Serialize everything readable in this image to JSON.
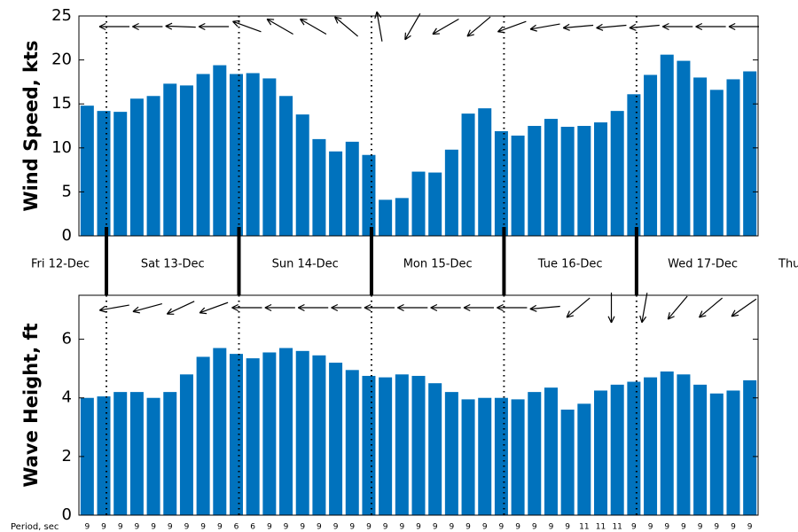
{
  "chart_data": [
    {
      "type": "bar",
      "ylabel": "Wind Speed, kts",
      "color": "#0072bd",
      "ylim": [
        0,
        25
      ],
      "yticks": [
        0,
        5,
        10,
        15,
        20,
        25
      ],
      "values": [
        14.8,
        14.2,
        14.1,
        15.6,
        15.9,
        17.3,
        17.1,
        18.4,
        19.4,
        18.4,
        18.5,
        17.9,
        15.9,
        13.8,
        11.0,
        9.6,
        10.7,
        9.2,
        4.1,
        4.3,
        7.3,
        7.2,
        9.8,
        13.9,
        14.5,
        11.9,
        11.4,
        12.5,
        13.3,
        12.4,
        12.5,
        12.9,
        14.2,
        16.1,
        18.3,
        20.6,
        19.9,
        18.0,
        16.6,
        17.8,
        18.7
      ],
      "arrow_directions": [
        270,
        270,
        272,
        270,
        290,
        300,
        300,
        310,
        350,
        210,
        240,
        230,
        250,
        260,
        265,
        265,
        265,
        270,
        270,
        270
      ]
    },
    {
      "type": "bar",
      "ylabel": "Wave Height, ft",
      "color": "#0072bd",
      "ylim": [
        0,
        7.5
      ],
      "yticks": [
        0,
        2,
        4,
        6
      ],
      "values": [
        4.0,
        4.05,
        4.2,
        4.2,
        4.0,
        4.2,
        4.8,
        5.4,
        5.7,
        5.5,
        5.35,
        5.55,
        5.7,
        5.6,
        5.45,
        5.2,
        4.95,
        4.75,
        4.7,
        4.8,
        4.75,
        4.5,
        4.2,
        3.95,
        4.0,
        4.0,
        3.95,
        4.2,
        4.35,
        3.6,
        3.8,
        4.25,
        4.45,
        4.55,
        4.7,
        4.9,
        4.8,
        4.45,
        4.15,
        4.25,
        4.6
      ],
      "arrow_directions": [
        260,
        255,
        245,
        250,
        270,
        270,
        270,
        270,
        270,
        270,
        270,
        270,
        270,
        265,
        230,
        180,
        190,
        220,
        230,
        235
      ]
    }
  ],
  "days": [
    "Fri 12-Dec",
    "Sat 13-Dec",
    "Sun 14-Dec",
    "Mon 15-Dec",
    "Tue 16-Dec",
    "Wed 17-Dec",
    "Thu"
  ],
  "periods_label": "Period, sec",
  "periods": [
    9,
    9,
    9,
    9,
    9,
    9,
    9,
    9,
    9,
    6,
    6,
    9,
    9,
    9,
    9,
    9,
    9,
    9,
    9,
    9,
    9,
    9,
    9,
    9,
    9,
    9,
    9,
    9,
    9,
    9,
    11,
    11,
    11,
    9,
    9,
    9,
    9,
    9,
    9,
    9,
    9
  ]
}
